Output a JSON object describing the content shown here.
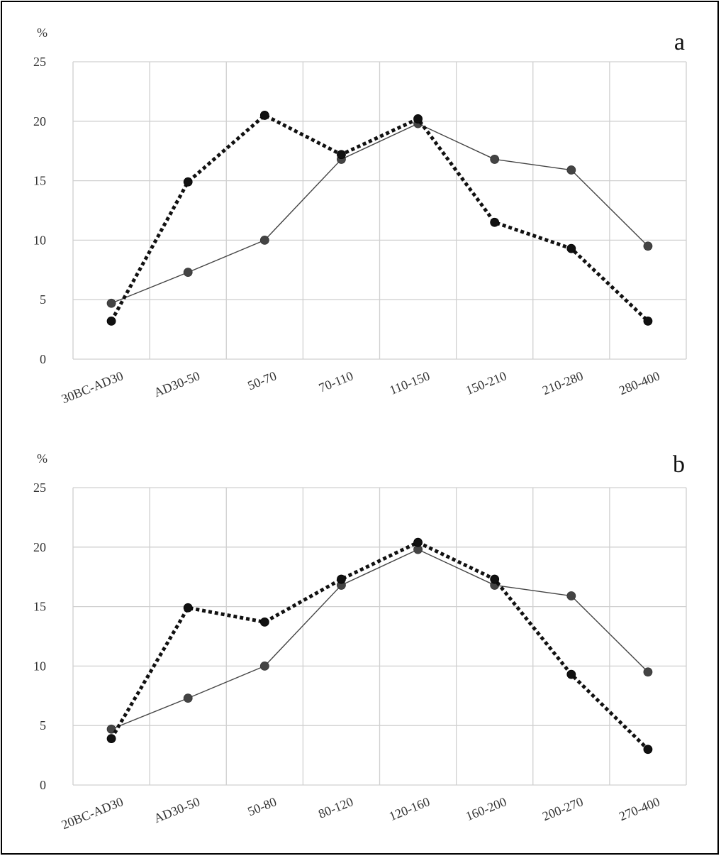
{
  "chart_data": [
    {
      "type": "line",
      "panel_label": "a",
      "y_unit": "%",
      "categories": [
        "30BC-AD30",
        "AD30-50",
        "50-70",
        "70-110",
        "110-150",
        "150-210",
        "210-280",
        "280-400"
      ],
      "ylim": [
        0,
        25
      ],
      "yticks": [
        0,
        5,
        10,
        15,
        20,
        25
      ],
      "grid": true,
      "series": [
        {
          "style": "solid",
          "color": "#444444",
          "values": [
            4.7,
            7.3,
            10.0,
            16.8,
            19.8,
            16.8,
            15.9,
            9.5
          ]
        },
        {
          "style": "dotted",
          "color": "#111111",
          "values": [
            3.2,
            14.9,
            20.5,
            17.2,
            20.2,
            11.5,
            9.3,
            3.2
          ]
        }
      ]
    },
    {
      "type": "line",
      "panel_label": "b",
      "y_unit": "%",
      "categories": [
        "20BC-AD30",
        "AD30-50",
        "50-80",
        "80-120",
        "120-160",
        "160-200",
        "200-270",
        "270-400"
      ],
      "ylim": [
        0,
        25
      ],
      "yticks": [
        0,
        5,
        10,
        15,
        20,
        25
      ],
      "grid": true,
      "series": [
        {
          "style": "solid",
          "color": "#444444",
          "values": [
            4.7,
            7.3,
            10.0,
            16.8,
            19.8,
            16.8,
            15.9,
            9.5
          ]
        },
        {
          "style": "dotted",
          "color": "#111111",
          "values": [
            3.9,
            14.9,
            13.7,
            17.3,
            20.4,
            17.3,
            9.3,
            3.0
          ]
        }
      ]
    }
  ]
}
